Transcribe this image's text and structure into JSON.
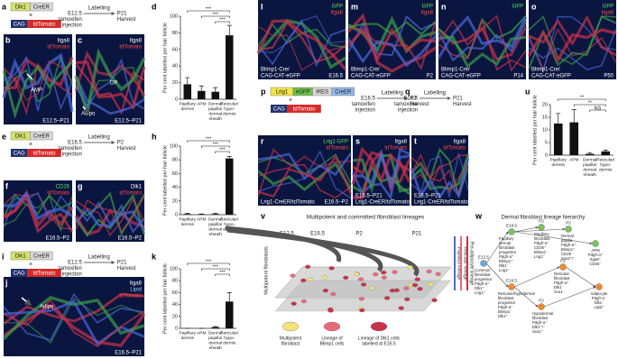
{
  "panel_letters": [
    "a",
    "b",
    "c",
    "d",
    "e",
    "f",
    "g",
    "h",
    "i",
    "j",
    "k",
    "l",
    "m",
    "n",
    "o",
    "p",
    "q",
    "r",
    "s",
    "t",
    "u",
    "v",
    "w"
  ],
  "schemes": {
    "a": {
      "genes": [
        "Dlk1",
        "CreER"
      ],
      "cross": "×",
      "reporter": [
        "CAG",
        "tdTomato"
      ],
      "labelling": "Labelling",
      "start": [
        "E12.5",
        "tamoxifen",
        "injection"
      ],
      "end": [
        "P21",
        "Harvest"
      ]
    },
    "e": {
      "genes": [
        "Dlk1",
        "CreER"
      ],
      "cross": "×",
      "reporter": [
        "CAG",
        "tdTomato"
      ],
      "labelling": "Labelling",
      "start": [
        "E16.5",
        "tamoxifen",
        "injection"
      ],
      "end": [
        "P2",
        "Harvest"
      ]
    },
    "i": {
      "genes": [
        "Dlk1",
        "CreER"
      ],
      "cross": "×",
      "reporter": [
        "CAG",
        "tdTomato"
      ],
      "labelling": "Labelling",
      "start": [
        "E12.5",
        "tamoxifen",
        "injection"
      ],
      "end": [
        "P21",
        "Harvest"
      ]
    },
    "p": {
      "genes": [
        "Lrig1",
        "eGFP",
        "IRES",
        "CreER"
      ],
      "cross": "×",
      "reporter": [
        "CAG",
        "tdTomato"
      ],
      "labelling": "Labelling",
      "start": [
        "E16.5",
        "tamoxifen",
        "injection"
      ],
      "end": [
        "P2",
        "Harvest"
      ]
    },
    "q": {
      "labelling": "Labelling",
      "start": [
        "E16.5",
        "tamoxifen",
        "injection"
      ],
      "end": [
        "P21",
        "Harvest"
      ]
    }
  },
  "images": {
    "b": {
      "tr": [
        "Itga8",
        "tdTomato"
      ],
      "colors": [
        "#ffffff",
        "#ff4a4a"
      ],
      "notes": [
        "AMP"
      ],
      "stage": "E12.5–P21"
    },
    "c": {
      "tr": [
        "Itga8",
        "tdTomato"
      ],
      "colors": [
        "#ffffff",
        "#ff4a4a"
      ],
      "notes": [
        "DP",
        "Adipo"
      ],
      "stage": "E12.5–P21"
    },
    "f": {
      "tr": [
        "CD26",
        "tdTomato"
      ],
      "colors": [
        "#5ee05e",
        "#ff4a4a"
      ],
      "notes": [],
      "stage": "E16.5–P2"
    },
    "g": {
      "tr": [
        "Dlk1",
        "tdTomato"
      ],
      "colors": [
        "#ffffff",
        "#ff4a4a"
      ],
      "notes": [],
      "stage": "E16.5–P2"
    },
    "j": {
      "tr": [
        "Itga8",
        "Lipid",
        "tdTomato"
      ],
      "colors": [
        "#ffffff",
        "#8fd0ff",
        "#ff4a4a"
      ],
      "notes": [
        "Adipo"
      ],
      "stage": "E16.5–P21"
    },
    "l": {
      "tr": [
        "GFP",
        "Itga8"
      ],
      "colors": [
        "#5ee05e",
        "#ff4a4a"
      ],
      "notes": [
        "Blimp1-Cre/",
        "CAG-CAT-eGFP"
      ],
      "stage": "E16.5"
    },
    "m": {
      "tr": [
        "GFP",
        "Itga8"
      ],
      "colors": [
        "#5ee05e",
        "#ff4a4a"
      ],
      "notes": [
        "Blimp1-Cre/",
        "CAG-CAT-eGFP"
      ],
      "stage": "P2"
    },
    "n": {
      "tr": [
        "GFP"
      ],
      "colors": [
        "#5ee05e"
      ],
      "notes": [
        "Blimp1-Cre/",
        "CAG-CAT-eGFP"
      ],
      "stage": "P14"
    },
    "o": {
      "tr": [
        "GFP",
        "Itga8"
      ],
      "colors": [
        "#5ee05e",
        "#ff4a4a"
      ],
      "notes": [
        "Blimp1-Cre/",
        "CAG-CAT-eGFP"
      ],
      "stage": "P50"
    },
    "r": {
      "tr": [
        "Lrig1-GFP",
        "tdTomato"
      ],
      "colors": [
        "#5ee05e",
        "#ff4a4a"
      ],
      "notes": [
        "Lrig1-CreER/tdTomato"
      ],
      "stage": "E16.5–P2"
    },
    "s": {
      "tr": [
        "Itga8",
        "tdTomato"
      ],
      "colors": [
        "#ffffff",
        "#ff4a4a"
      ],
      "notes": [
        "Lrig1-CreER/tdTomato"
      ],
      "stage": "E16.5–P21"
    },
    "t": {
      "tr": [
        "Itga8",
        "tdTomato"
      ],
      "colors": [
        "#ffffff",
        "#ff4a4a"
      ],
      "notes": [
        "Lrig1-CreER/tdTomato"
      ],
      "stage": "E16.5–P21"
    }
  },
  "charts": {
    "d": {
      "type": "bar",
      "ylabel": "Per cent labelled per hair follicle",
      "categories": [
        [
          "Papillary",
          "dermis"
        ],
        [
          "APM"
        ],
        [
          "Dermal",
          "papilla/",
          "dermal",
          "sheath"
        ],
        [
          "Reticular/",
          "hypo-",
          "dermis"
        ]
      ],
      "values": [
        18,
        10,
        9,
        77
      ],
      "errors": [
        8,
        6,
        5,
        12
      ],
      "color": "#111111",
      "ylim": [
        0,
        100
      ],
      "yticks": [
        0,
        20,
        40,
        60,
        80,
        100
      ],
      "significance": [
        "***",
        "***",
        "***"
      ]
    },
    "h": {
      "type": "bar",
      "ylabel": "Per cent labelled per hair follicle",
      "categories": [
        [
          "Papillary",
          "dermis"
        ],
        [
          "APM"
        ],
        [
          "Dermal",
          "papilla/",
          "dermal",
          "sheath"
        ],
        [
          "Reticular/",
          "hypo-",
          "dermis"
        ]
      ],
      "values": [
        1,
        0.5,
        1,
        82
      ],
      "errors": [
        1,
        0.5,
        1,
        3
      ],
      "color": "#111111",
      "ylim": [
        0,
        100
      ],
      "yticks": [
        0,
        20,
        40,
        60,
        80,
        100
      ],
      "significance": [
        "***",
        "***",
        "***"
      ]
    },
    "k": {
      "type": "bar",
      "ylabel": "Per cent labelled per hair follicle",
      "categories": [
        [
          "Papillary",
          "dermis"
        ],
        [
          "APM"
        ],
        [
          "Dermal",
          "papilla/",
          "dermal",
          "sheath"
        ],
        [
          "Reticular/",
          "hypo-",
          "dermis"
        ]
      ],
      "values": [
        0,
        0,
        2,
        45
      ],
      "errors": [
        0,
        0,
        1,
        15
      ],
      "color": "#111111",
      "ylim": [
        0,
        100
      ],
      "yticks": [
        0,
        20,
        40,
        60,
        80,
        100
      ],
      "significance": [
        "***",
        "***",
        "***"
      ]
    },
    "u": {
      "type": "bar",
      "ylabel": "Per cent labelled per hair follicle",
      "categories": [
        [
          "Papillary",
          "dermis"
        ],
        [
          "APM"
        ],
        [
          "Dermal",
          "papilla/",
          "dermal",
          "sheath"
        ],
        [
          "Reticular/",
          "hypo-",
          "dermis"
        ]
      ],
      "values": [
        12.5,
        13,
        0.5,
        1.5
      ],
      "errors": [
        4,
        5,
        0.5,
        0.5
      ],
      "color": "#111111",
      "ylim": [
        0,
        20
      ],
      "yticks": [
        0,
        5,
        10,
        15,
        20
      ],
      "significance": [
        "**",
        "**",
        "NS"
      ]
    }
  },
  "lineages": {
    "title": "Multipotent and committed fibroblast lineages",
    "stages": [
      "E12.5",
      "E16.5",
      "P2",
      "P21"
    ],
    "side": "Multipotent fibroblasts",
    "lineages": [
      "Papillary lineage",
      "Reticular lineage",
      "Pre-adipocyte lineage"
    ],
    "legend": [
      [
        "Multipotent",
        "fibroblast"
      ],
      [
        "Lineage of",
        "Blimp1 cells"
      ],
      [
        "Lineage of Dlk1 cells",
        "labelled at E16.5"
      ]
    ]
  },
  "hierarchy": {
    "title": "Dermal fibroblast lineage hierarchy",
    "nodes": [
      {
        "stage": "E12.5",
        "lines": [
          "Common",
          "fibroblast",
          "progenitor",
          "Pdgfr-α⁺",
          "Dlk1⁺",
          "Lrig1⁺"
        ]
      },
      {
        "stage": "E16.5",
        "lines": [
          "Papillary",
          "dermal",
          "fibroblast",
          "progenitor",
          "Pdgfr-α⁺",
          "Blimp1⁺",
          "Dlk1⁻",
          "Lrig1⁺"
        ]
      },
      {
        "stage": "E16.5",
        "lines": [
          "Reticular/hypodermal",
          "fibroblast",
          "progenitor",
          "Pdgfr-α⁺",
          "Blimp1⁻",
          "Dlk1⁺"
        ]
      },
      {
        "stage": "P2",
        "lines": [
          "Papillary",
          "fibroblast",
          "Pdgfr-α⁺",
          "CD26⁺",
          "Blimp1⁻",
          "Lrig1⁺"
        ]
      },
      {
        "stage": "P2",
        "lines": [
          "Dermal",
          "papilla",
          "Pdgfr-α⁺",
          "Blimp1⁺",
          "CD26⁻",
          "Sox2⁺/⁻"
        ]
      },
      {
        "lines": [
          "APM",
          "Pdgfr-α⁺",
          "Itga8⁺",
          "CD26⁻"
        ]
      },
      {
        "stage": "P2",
        "lines": [
          "Reticular",
          "fibroblast",
          "Pdgfr-α⁺",
          "Dlk1⁻",
          "Sca1⁻"
        ]
      },
      {
        "stage": "P2",
        "lines": [
          "Hypodermal",
          "fibroblast",
          "Pdgfr-α⁺",
          "Dlk1⁺/⁻",
          "Sca1⁺"
        ]
      },
      {
        "lines": [
          "Adipocyte",
          "Pdgfr-α⁻",
          "Dlk1⁻",
          "Lipid⁺"
        ]
      }
    ]
  }
}
